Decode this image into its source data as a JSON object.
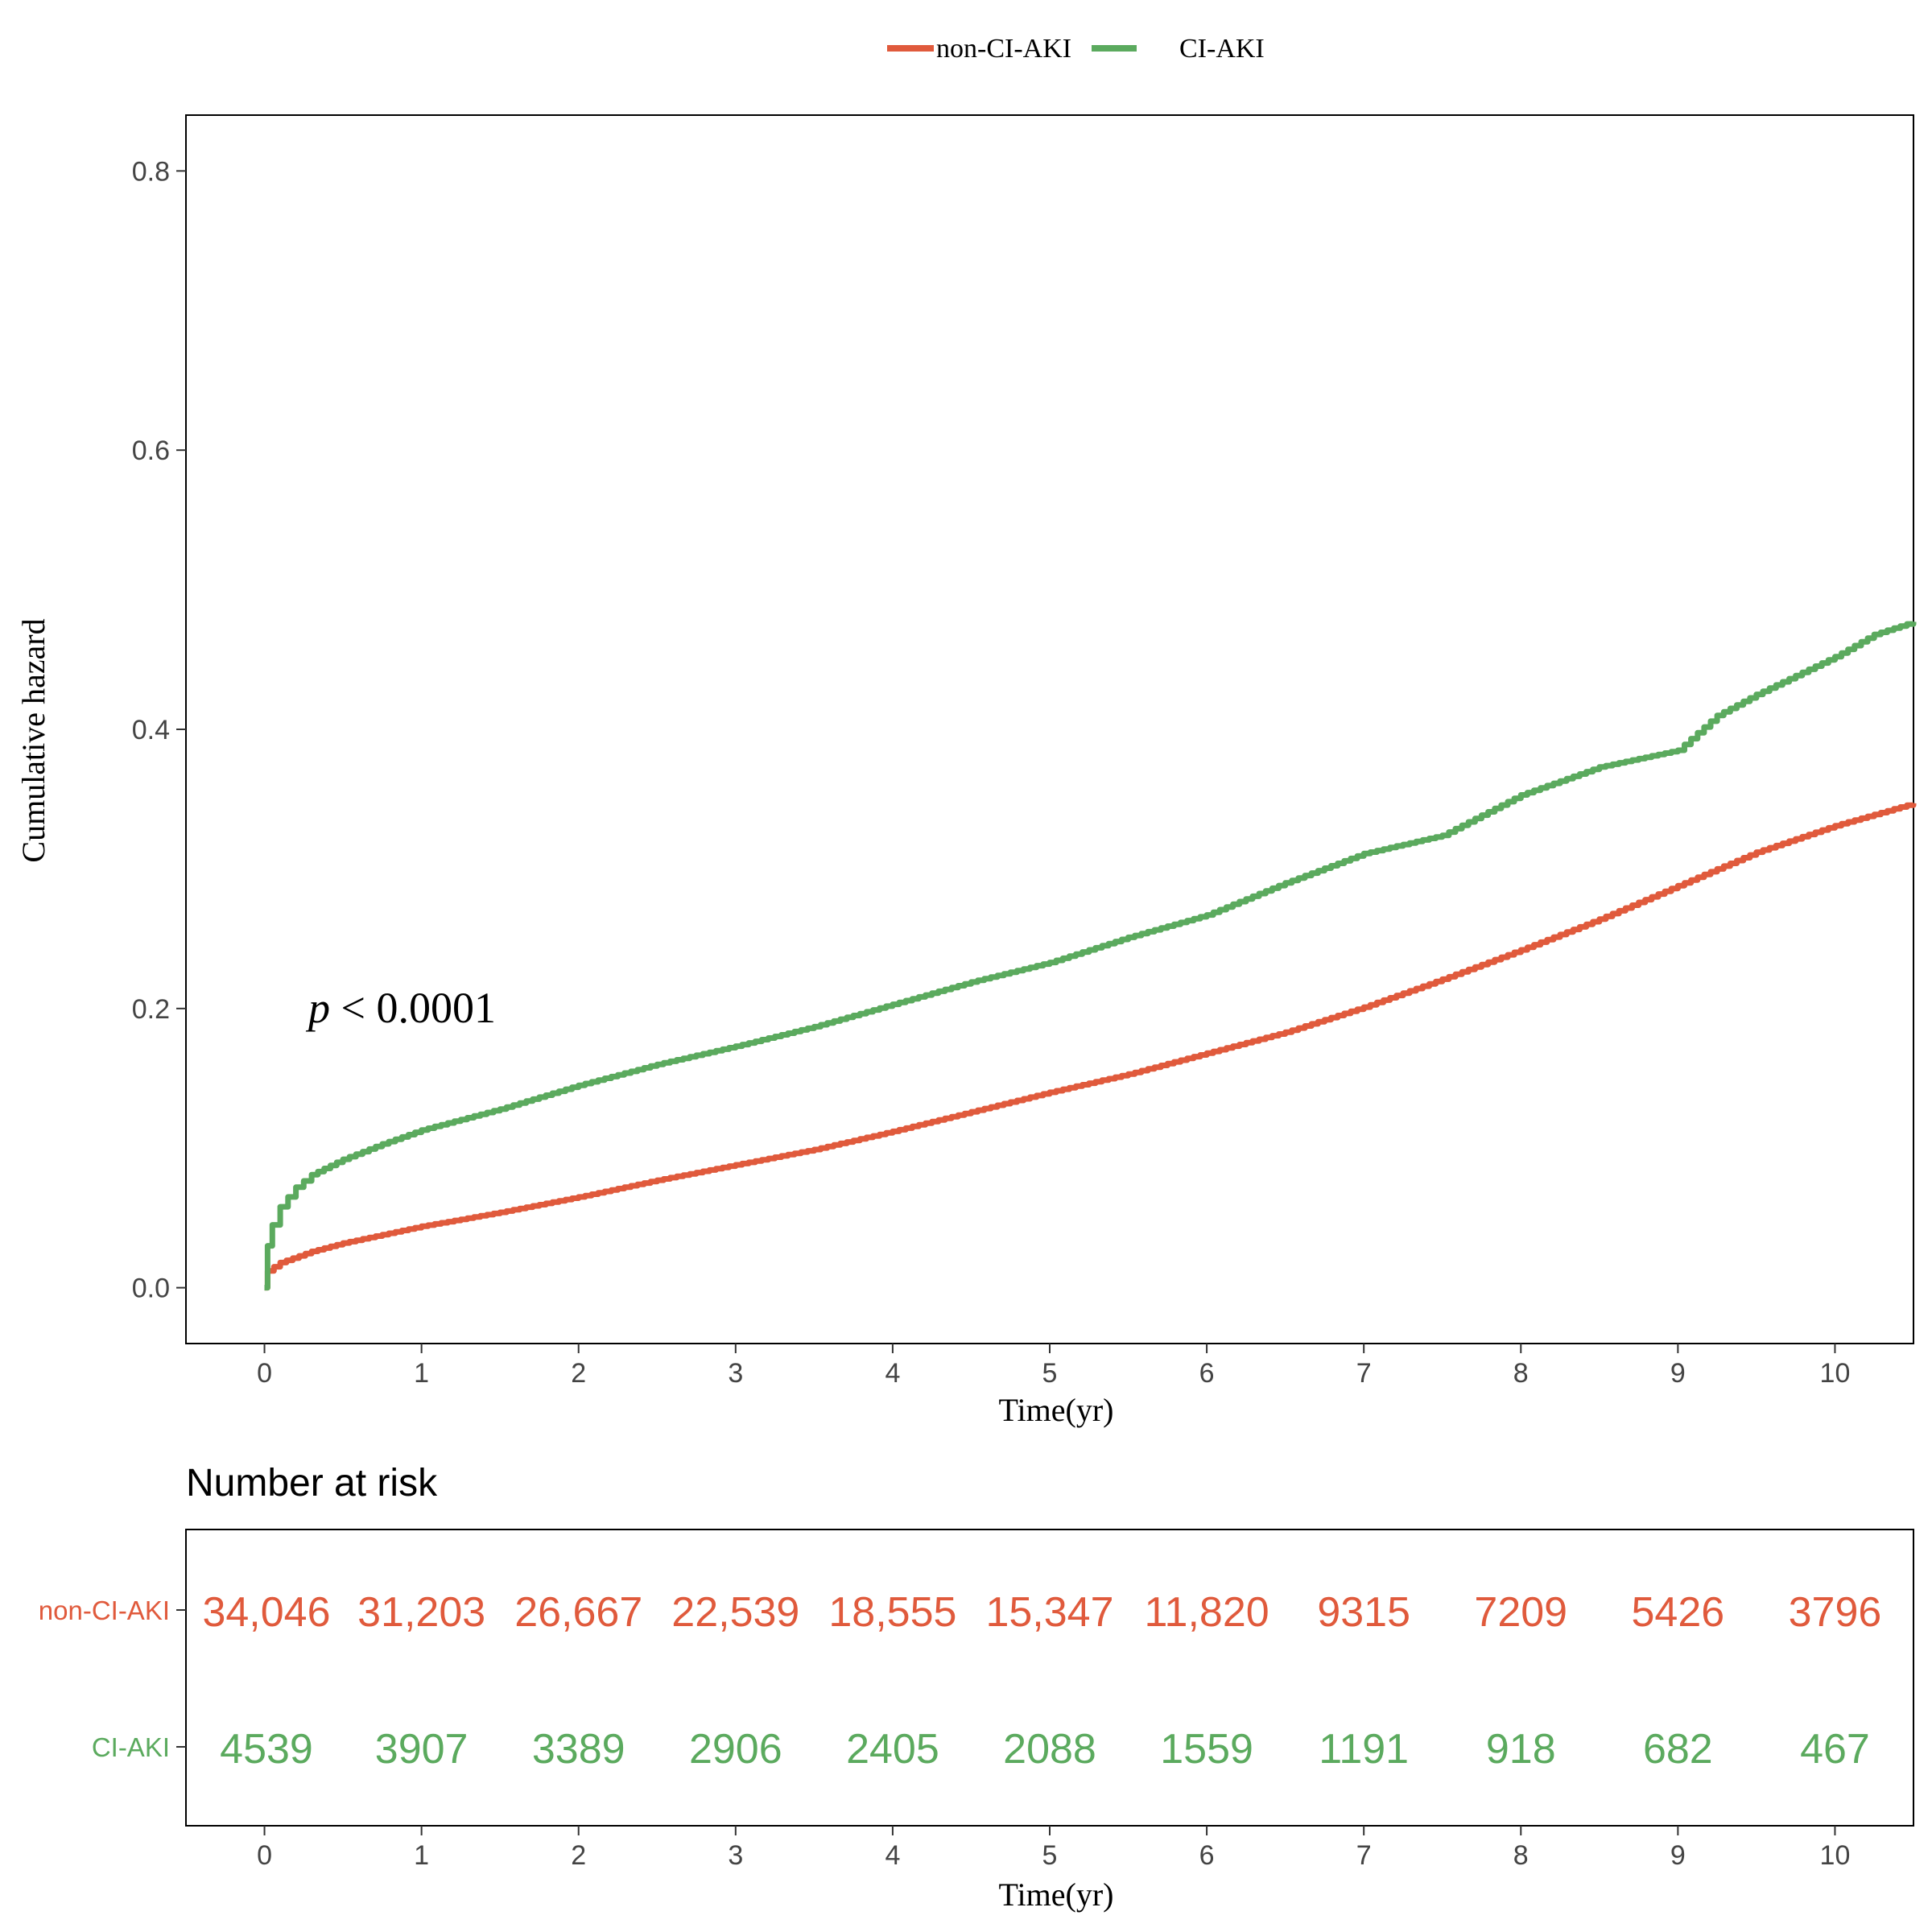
{
  "chart_data": [
    {
      "type": "line",
      "ylabel": "Cumulative hazard",
      "xlabel": "Time(yr)",
      "x_ticks": [
        0,
        1,
        2,
        3,
        4,
        5,
        6,
        7,
        8,
        9,
        10
      ],
      "y_ticks": [
        0.0,
        0.2,
        0.4,
        0.6,
        0.8
      ],
      "y_tick_labels": [
        "0.0",
        "0.2",
        "0.4",
        "0.6",
        "0.8"
      ],
      "xlim": [
        -0.5,
        10.5
      ],
      "ylim": [
        -0.04,
        0.84
      ],
      "grid": false,
      "legend_position": "top",
      "annotation": {
        "p": "p",
        "rest": " < 0.0001"
      },
      "series": [
        {
          "name": "non-CI-AKI",
          "color": "#E05A3C",
          "points": [
            [
              0,
              0
            ],
            [
              0.02,
              0.012
            ],
            [
              0.1,
              0.018
            ],
            [
              0.3,
              0.026
            ],
            [
              0.5,
              0.032
            ],
            [
              0.75,
              0.038
            ],
            [
              1,
              0.044
            ],
            [
              1.5,
              0.054
            ],
            [
              2,
              0.065
            ],
            [
              2.5,
              0.077
            ],
            [
              3,
              0.088
            ],
            [
              3.5,
              0.099
            ],
            [
              4,
              0.112
            ],
            [
              4.5,
              0.126
            ],
            [
              5,
              0.14
            ],
            [
              5.5,
              0.153
            ],
            [
              6,
              0.168
            ],
            [
              6.5,
              0.183
            ],
            [
              7,
              0.201
            ],
            [
              7.5,
              0.221
            ],
            [
              8,
              0.242
            ],
            [
              8.5,
              0.264
            ],
            [
              9,
              0.288
            ],
            [
              9.5,
              0.312
            ],
            [
              10,
              0.331
            ],
            [
              10.5,
              0.347
            ]
          ]
        },
        {
          "name": "CI-AKI",
          "color": "#5BAA5E",
          "points": [
            [
              0,
              0
            ],
            [
              0.02,
              0.03
            ],
            [
              0.05,
              0.045
            ],
            [
              0.1,
              0.058
            ],
            [
              0.2,
              0.072
            ],
            [
              0.3,
              0.081
            ],
            [
              0.5,
              0.092
            ],
            [
              0.75,
              0.103
            ],
            [
              1,
              0.113
            ],
            [
              1.5,
              0.128
            ],
            [
              2,
              0.145
            ],
            [
              2.5,
              0.16
            ],
            [
              3,
              0.173
            ],
            [
              3.5,
              0.187
            ],
            [
              4,
              0.203
            ],
            [
              4.5,
              0.219
            ],
            [
              5,
              0.233
            ],
            [
              5.5,
              0.251
            ],
            [
              6,
              0.267
            ],
            [
              6.5,
              0.29
            ],
            [
              7,
              0.311
            ],
            [
              7.5,
              0.324
            ],
            [
              8,
              0.353
            ],
            [
              8.5,
              0.373
            ],
            [
              9,
              0.385
            ],
            [
              9.25,
              0.41
            ],
            [
              9.5,
              0.425
            ],
            [
              10,
              0.452
            ],
            [
              10.25,
              0.468
            ],
            [
              10.5,
              0.477
            ]
          ]
        }
      ]
    },
    {
      "type": "table",
      "title": "Number at risk",
      "xlabel": "Time(yr)",
      "x_ticks": [
        0,
        1,
        2,
        3,
        4,
        5,
        6,
        7,
        8,
        9,
        10
      ],
      "rows": [
        {
          "name": "non-CI-AKI",
          "color": "#E05A3C",
          "values": [
            "34,046",
            "31,203",
            "26,667",
            "22,539",
            "18,555",
            "15,347",
            "11,820",
            "9315",
            "7209",
            "5426",
            "3796"
          ]
        },
        {
          "name": "CI-AKI",
          "color": "#5BAA5E",
          "values": [
            "4539",
            "3907",
            "3389",
            "2906",
            "2405",
            "2088",
            "1559",
            "1191",
            "918",
            "682",
            "467"
          ]
        }
      ]
    }
  ]
}
